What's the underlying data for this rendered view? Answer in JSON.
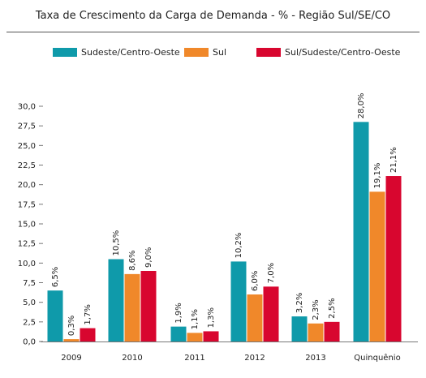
{
  "title": "Taxa de Crescimento da Carga de Demanda - % - Região Sul/SE/CO",
  "chart_data": {
    "type": "bar",
    "title": "Taxa de Crescimento da Carga de Demanda - % - Região Sul/SE/CO",
    "categories": [
      "2009",
      "2010",
      "2011",
      "2012",
      "2013",
      "Quinquênio"
    ],
    "series": [
      {
        "name": "Sudeste/Centro-Oeste",
        "color": "#0f9aaa",
        "values": [
          6.5,
          10.5,
          1.9,
          10.2,
          3.2,
          28.0
        ],
        "labels": [
          "6,5%",
          "10,5%",
          "1,9%",
          "10,2%",
          "3,2%",
          "28,0%"
        ]
      },
      {
        "name": "Sul",
        "color": "#f0882a",
        "values": [
          0.3,
          8.6,
          1.1,
          6.0,
          2.3,
          19.1
        ],
        "labels": [
          "0,3%",
          "8,6%",
          "1,1%",
          "6,0%",
          "2,3%",
          "19,1%"
        ]
      },
      {
        "name": "Sul/Sudeste/Centro-Oeste",
        "color": "#d8062f",
        "values": [
          1.7,
          9.0,
          1.3,
          7.0,
          2.5,
          21.1
        ],
        "labels": [
          "1,7%",
          "9,0%",
          "1,3%",
          "7,0%",
          "2,5%",
          "21,1%"
        ]
      }
    ],
    "yticks": [
      0,
      2.5,
      5,
      7.5,
      10,
      12.5,
      15,
      17.5,
      20,
      22.5,
      25,
      27.5,
      30
    ],
    "ytick_labels": [
      "0,0",
      "2,5",
      "5,0",
      "7,5",
      "10,0",
      "12,5",
      "15,0",
      "17,5",
      "20,0",
      "22,5",
      "25,0",
      "27,5",
      "30,0"
    ],
    "ylim": [
      0,
      30
    ],
    "xlabel": "",
    "ylabel": "",
    "grid": false,
    "legend_position": "top"
  }
}
